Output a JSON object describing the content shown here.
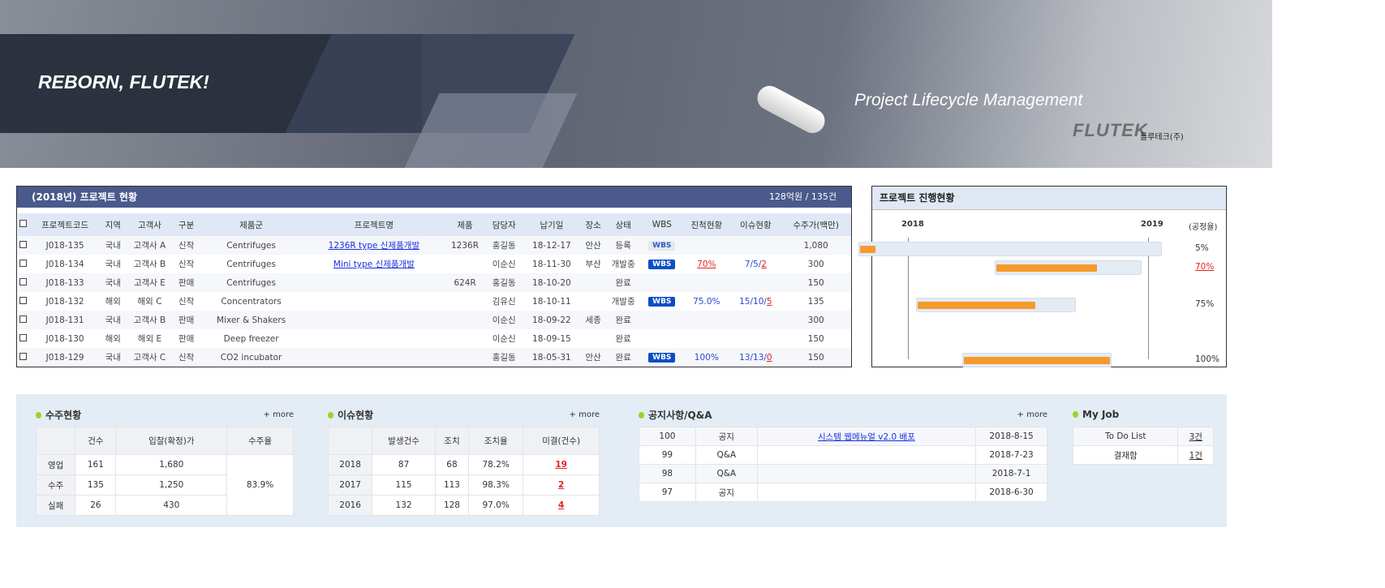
{
  "banner": {
    "slogan": "REBORN, FLUTEK!",
    "subtitle": "Project Lifecycle Management",
    "logo": "FLUTEK",
    "company": "플루테크(주)"
  },
  "projects": {
    "title": "(2018년) 프로젝트 현황",
    "summary": "128억원 / 135건",
    "columns": [
      "프로젝트코드",
      "지역",
      "고객사",
      "구분",
      "제품군",
      "프로젝트명",
      "제품",
      "담당자",
      "납기일",
      "장소",
      "상태",
      "WBS",
      "진척현황",
      "이슈현황",
      "수주가(백만)"
    ],
    "rows": [
      {
        "code": "J018-135",
        "region": "국내",
        "client": "고객사 A",
        "type": "신작",
        "group": "Centrifuges",
        "name": "1236R type 신제품개발",
        "product": "1236R",
        "owner": "홍길동",
        "due": "18-12-17",
        "place": "안산",
        "status": "등록",
        "wbs": "WBS",
        "wbs_active": false,
        "progress": "",
        "issue_a": "",
        "issue_b": "",
        "price": "1,080"
      },
      {
        "code": "J018-134",
        "region": "국내",
        "client": "고객사 B",
        "type": "신작",
        "group": "Centrifuges",
        "name": "Mini type 신제품개발",
        "product": "",
        "owner": "이순신",
        "due": "18-11-30",
        "place": "부산",
        "status": "개발중",
        "wbs": "WBS",
        "wbs_active": true,
        "progress": "70%",
        "progress_red": true,
        "issue_a": "7/5/",
        "issue_b": "2",
        "price": "300"
      },
      {
        "code": "J018-133",
        "region": "국내",
        "client": "고객사 E",
        "type": "판매",
        "group": "Centrifuges",
        "name": "",
        "product": "624R",
        "owner": "홍길동",
        "due": "18-10-20",
        "place": "",
        "status": "완료",
        "wbs": "",
        "progress": "",
        "issue_a": "",
        "issue_b": "",
        "price": "150"
      },
      {
        "code": "J018-132",
        "region": "해외",
        "client": "해외 C",
        "type": "신작",
        "group": "Concentrators",
        "name": "",
        "product": "",
        "owner": "김유신",
        "due": "18-10-11",
        "place": "",
        "status": "개발중",
        "wbs": "WBS",
        "wbs_active": true,
        "progress": "75.0%",
        "issue_a": "15/10/",
        "issue_b": "5",
        "price": "135"
      },
      {
        "code": "J018-131",
        "region": "국내",
        "client": "고객사 B",
        "type": "판매",
        "group": "Mixer & Shakers",
        "name": "",
        "product": "",
        "owner": "이순신",
        "due": "18-09-22",
        "place": "세종",
        "status": "완료",
        "wbs": "",
        "progress": "",
        "issue_a": "",
        "issue_b": "",
        "price": "300"
      },
      {
        "code": "J018-130",
        "region": "해외",
        "client": "해외 E",
        "type": "판매",
        "group": "Deep freezer",
        "name": "",
        "product": "",
        "owner": "이순신",
        "due": "18-09-15",
        "place": "",
        "status": "완료",
        "wbs": "",
        "progress": "",
        "issue_a": "",
        "issue_b": "",
        "price": "150"
      },
      {
        "code": "J018-129",
        "region": "국내",
        "client": "고객사 C",
        "type": "신작",
        "group": "CO2 incubator",
        "name": "",
        "product": "",
        "owner": "홍길동",
        "due": "18-05-31",
        "place": "안산",
        "status": "완료",
        "wbs": "WBS",
        "wbs_active": true,
        "progress": "100%",
        "issue_a": "13/13/",
        "issue_b": "0",
        "price": "150"
      }
    ]
  },
  "gantt": {
    "title": "프로젝트 진행현황",
    "axis_start": "2018",
    "axis_end": "2019",
    "rate_label": "(공정율)",
    "colors": {
      "bar": "#f59a2b",
      "track": "#e3ebf5"
    },
    "rows": [
      {
        "table_row": 0,
        "start": "2017-10-18",
        "end": "2019-01-22",
        "progress": 5,
        "label": "5%",
        "red": false
      },
      {
        "table_row": 1,
        "start": "2018-05-13",
        "end": "2018-12-22",
        "progress": 70,
        "label": "70%",
        "red": true
      },
      {
        "table_row": 3,
        "start": "2018-01-13",
        "end": "2018-09-13",
        "progress": 75,
        "label": "75%",
        "red": false
      },
      {
        "table_row": 6,
        "start": "2018-03-25",
        "end": "2018-11-06",
        "progress": 100,
        "label": "100%",
        "red": false
      }
    ]
  },
  "orders": {
    "title": "수주현황",
    "more": "+ more",
    "columns": [
      "",
      "건수",
      "입찰(확정)가",
      "수주율"
    ],
    "rows": [
      [
        "영업",
        "161",
        "1,680"
      ],
      [
        "수주",
        "135",
        "1,250"
      ],
      [
        "실패",
        "26",
        "430"
      ]
    ],
    "rate": "83.9%"
  },
  "issues": {
    "title": "이슈현황",
    "more": "+ more",
    "columns": [
      "",
      "발생건수",
      "조치",
      "조치율",
      "미결(건수)"
    ],
    "rows": [
      [
        "2018",
        "87",
        "68",
        "78.2%",
        "19"
      ],
      [
        "2017",
        "115",
        "113",
        "98.3%",
        "2"
      ],
      [
        "2016",
        "132",
        "128",
        "97.0%",
        "4"
      ]
    ]
  },
  "notices": {
    "title": "공지사항/Q&A",
    "more": "+ more",
    "rows": [
      [
        "100",
        "공지",
        "시스템 웹메뉴얼 v2.0 배포",
        "2018-8-15"
      ],
      [
        "99",
        "Q&A",
        "",
        "2018-7-23"
      ],
      [
        "98",
        "Q&A",
        "",
        "2018-7-1"
      ],
      [
        "97",
        "공지",
        "",
        "2018-6-30"
      ]
    ]
  },
  "myjob": {
    "title": "My Job",
    "rows": [
      [
        "To Do List",
        "3건"
      ],
      [
        "결재함",
        "1건"
      ]
    ]
  }
}
